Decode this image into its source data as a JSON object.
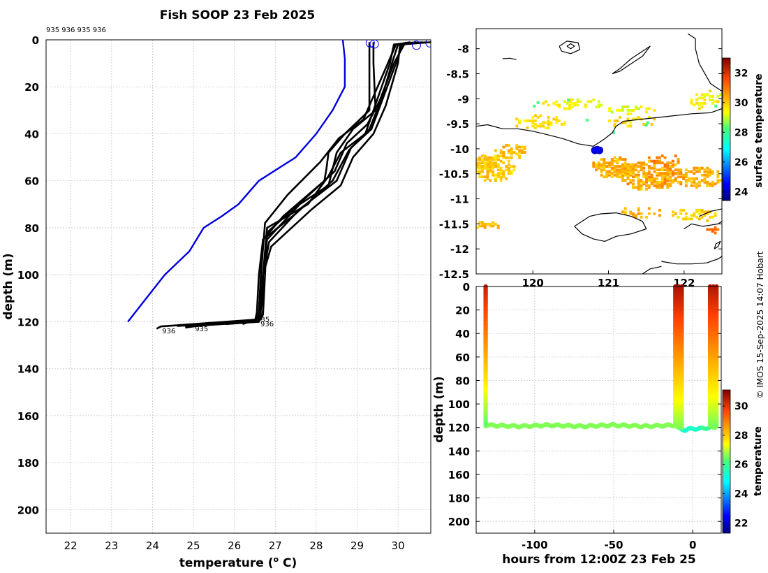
{
  "figure": {
    "title": "Fish SOOP 23 Feb 2025",
    "credit": "© IMOS 15-Sep-2025 14:07 Hobart"
  },
  "chart_data": [
    {
      "type": "line",
      "name": "temperature-depth-profiles",
      "xlabel": "temperature (°C)",
      "ylabel": "depth (m)",
      "xlim": [
        21.4,
        30.8
      ],
      "ylim": [
        0,
        210
      ],
      "y_reversed": true,
      "xticks": [
        22,
        23,
        24,
        25,
        26,
        27,
        28,
        29,
        30
      ],
      "yticks": [
        0,
        20,
        40,
        60,
        80,
        100,
        120,
        140,
        160,
        180,
        200
      ],
      "grid": true,
      "top_annotation": "935 936 935 936",
      "bottom_labels": [
        {
          "text": "936",
          "x": 24.4,
          "y": 123.5
        },
        {
          "text": "935",
          "x": 25.2,
          "y": 122.5
        },
        {
          "text": "935",
          "x": 26.7,
          "y": 118.5
        },
        {
          "text": "936",
          "x": 26.8,
          "y": 120.5
        }
      ],
      "series": [
        {
          "name": "climatology",
          "color": "#0000dd",
          "x": [
            28.65,
            28.7,
            28.7,
            28.4,
            28.0,
            27.5,
            26.6,
            26.1,
            25.7,
            25.25,
            24.9,
            24.3,
            23.85,
            23.4
          ],
          "y": [
            0,
            8,
            20,
            30,
            40,
            50,
            60,
            70,
            75,
            80,
            90,
            100,
            110,
            120
          ]
        },
        {
          "name": "profile-1",
          "color": "#000000",
          "x": [
            29.3,
            29.3,
            29.3,
            28.7,
            28.3,
            28.25,
            28.2,
            27.2,
            26.7,
            26.65,
            26.6,
            26.6,
            24.2,
            24.1
          ],
          "y": [
            1,
            10,
            30,
            40,
            48,
            55,
            60,
            75,
            85,
            100,
            116,
            119,
            122,
            123
          ]
        },
        {
          "name": "profile-2",
          "color": "#000000",
          "x": [
            29.4,
            29.4,
            29.45,
            28.9,
            28.5,
            28.3,
            27.6,
            26.8,
            26.7,
            26.7,
            26.65,
            25.0,
            24.8
          ],
          "y": [
            1,
            10,
            30,
            38,
            48,
            62,
            70,
            85,
            100,
            115,
            119,
            122,
            122.5
          ]
        },
        {
          "name": "profile-3",
          "color": "#000000",
          "x": [
            30.45,
            29.9,
            29.8,
            29.5,
            29.2,
            28.6,
            28.3,
            27.8,
            26.8,
            26.7,
            26.6,
            26.5,
            25.2
          ],
          "y": [
            1,
            2,
            10,
            25,
            40,
            48,
            58,
            70,
            80,
            100,
            116,
            120,
            121.5
          ]
        },
        {
          "name": "profile-4",
          "color": "#000000",
          "x": [
            30.8,
            30.0,
            29.85,
            29.6,
            29.3,
            28.8,
            28.4,
            27.5,
            26.7,
            26.6,
            26.55,
            26.5,
            25.8
          ],
          "y": [
            1,
            2,
            10,
            25,
            38,
            47,
            60,
            74,
            85,
            100,
            116,
            120,
            121
          ]
        },
        {
          "name": "profile-5",
          "color": "#000000",
          "x": [
            30.6,
            30.05,
            30.0,
            29.7,
            29.4,
            28.9,
            28.6,
            27.9,
            26.9,
            26.7,
            26.65,
            26.6,
            24.8
          ],
          "y": [
            1,
            2,
            10,
            28,
            40,
            50,
            62,
            72,
            88,
            100,
            115,
            120,
            122
          ]
        },
        {
          "name": "profile-6",
          "color": "#000000",
          "x": [
            30.2,
            30.15,
            29.9,
            29.55,
            29.25,
            28.75,
            28.45,
            27.7,
            26.8,
            26.75,
            26.7,
            26.6,
            25.5
          ],
          "y": [
            1,
            2,
            10,
            26,
            36,
            44,
            56,
            68,
            82,
            100,
            117,
            120,
            121
          ]
        },
        {
          "name": "profile-7",
          "color": "#000000",
          "x": [
            30.3,
            29.95,
            29.75,
            29.45,
            29.15,
            28.55,
            28.1,
            27.3,
            26.75,
            26.65,
            26.6,
            26.55,
            24.6
          ],
          "y": [
            1,
            2,
            10,
            22,
            34,
            42,
            52,
            66,
            78,
            100,
            117,
            120,
            121.8
          ]
        },
        {
          "name": "profile-8",
          "color": "#000000",
          "x": [
            30.7,
            30.1,
            29.95,
            29.65,
            29.35,
            28.85,
            28.5,
            27.6,
            26.85,
            26.7,
            26.6,
            26.55,
            26.2
          ],
          "y": [
            1,
            2,
            10,
            24,
            38,
            46,
            60,
            72,
            86,
            100,
            116,
            119,
            121
          ]
        }
      ],
      "surface_markers": [
        {
          "x": 29.32,
          "y": 1
        },
        {
          "x": 29.42,
          "y": 1.5
        },
        {
          "x": 30.45,
          "y": 2
        },
        {
          "x": 30.78,
          "y": 1
        }
      ]
    },
    {
      "type": "heatmap",
      "name": "surface-temperature-map",
      "colorbar_label": "surface temperature",
      "xlim": [
        119.25,
        122.5
      ],
      "ylim": [
        -12.5,
        -7.6
      ],
      "xticks": [
        120,
        121,
        122
      ],
      "xtick_labels": [
        "120",
        "121",
        "122"
      ],
      "yticks": [
        -8,
        -8.5,
        -9,
        -9.5,
        -10,
        -10.5,
        -11,
        -11.5,
        -12,
        -12.5
      ],
      "colorbar_ticks": [
        24,
        26,
        28,
        30,
        32
      ],
      "colorbar_range": [
        23.4,
        33
      ],
      "track_points": [
        [
          120.82,
          -10.03
        ],
        [
          120.88,
          -10.03
        ],
        [
          120.85,
          -10.02
        ]
      ]
    },
    {
      "type": "scatter",
      "name": "temperature-time-depth",
      "xlabel": "hours from 12:00Z 23 Feb 25",
      "ylabel": "depth (m)",
      "colorbar_label": "temperature",
      "xlim": [
        -137,
        18
      ],
      "ylim": [
        0,
        210
      ],
      "y_reversed": true,
      "xticks": [
        -100,
        -50,
        0
      ],
      "yticks": [
        0,
        20,
        40,
        60,
        80,
        100,
        120,
        140,
        160,
        180,
        200
      ],
      "colorbar_ticks": [
        22,
        24,
        26,
        28,
        30
      ],
      "colorbar_range": [
        21.3,
        31.1
      ],
      "casts": [
        {
          "hour": -131,
          "bottom": 118
        },
        {
          "hour": -11,
          "bottom": 120
        },
        {
          "hour": -9,
          "bottom": 121
        },
        {
          "hour": -7,
          "bottom": 121
        },
        {
          "hour": 11,
          "bottom": 120
        },
        {
          "hour": 13,
          "bottom": 121
        },
        {
          "hour": 15,
          "bottom": 120
        }
      ],
      "bottom_track": [
        [
          -131,
          118
        ],
        [
          -110,
          119
        ],
        [
          -90,
          118
        ],
        [
          -70,
          119
        ],
        [
          -50,
          118
        ],
        [
          -30,
          119
        ],
        [
          -11,
          118
        ],
        [
          -9,
          121
        ],
        [
          -5,
          122
        ],
        [
          0,
          121
        ],
        [
          5,
          121
        ],
        [
          11,
          120
        ],
        [
          15,
          120
        ]
      ]
    }
  ]
}
